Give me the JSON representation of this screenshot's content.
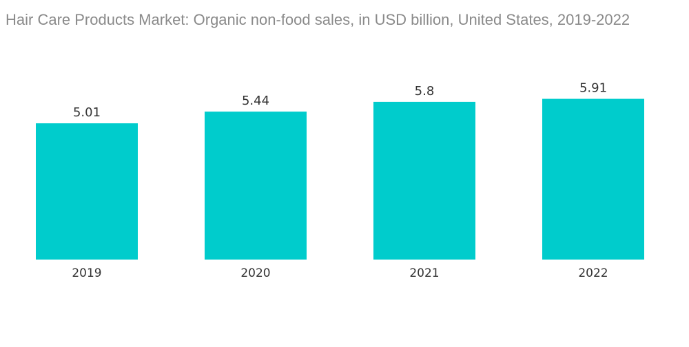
{
  "chart_data": {
    "type": "bar",
    "title": "Hair Care Products Market: Organic non-food sales, in USD billion, United States, 2019-2022",
    "categories": [
      "2019",
      "2020",
      "2021",
      "2022"
    ],
    "values": [
      5.01,
      5.44,
      5.8,
      5.91
    ],
    "value_labels": [
      "5.01",
      "5.44",
      "5.8",
      "5.91"
    ],
    "xlabel": "",
    "ylabel": "",
    "ylim": [
      0,
      6.5
    ],
    "grid": false,
    "legend": "none",
    "bar_color": "#00CCCC"
  }
}
